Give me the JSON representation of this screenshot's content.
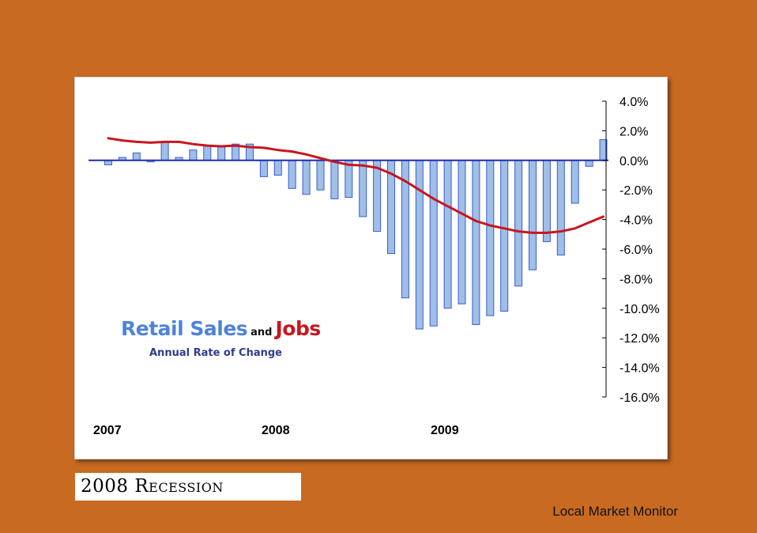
{
  "colors": {
    "background": "#c86a22",
    "bar_fill": "#9fbfe6",
    "bar_stroke": "#3b5bd6",
    "zero_line": "#1f2fb0",
    "jobs_line": "#c8161d",
    "retail_text": "#4f83d9",
    "jobs_text": "#c8161d",
    "sub_text": "#2f3d8c"
  },
  "chart_data": {
    "type": "bar",
    "title": "Retail Sales and Jobs",
    "subtitle": "Annual Rate of Change",
    "xlabel": "",
    "ylabel": "",
    "ylim": [
      -16,
      4
    ],
    "y_ticks": [
      "4.0%",
      "2.0%",
      "0.0%",
      "-2.0%",
      "-4.0%",
      "-6.0%",
      "-8.0%",
      "-10.0%",
      "-12.0%",
      "-14.0%",
      "-16.0%"
    ],
    "x_year_labels": [
      "2007",
      "2008",
      "2009"
    ],
    "series": [
      {
        "name": "Retail Sales",
        "kind": "bar",
        "values": [
          -0.3,
          0.2,
          0.5,
          -0.1,
          1.2,
          0.2,
          0.7,
          1.0,
          0.9,
          1.1,
          1.1,
          -1.1,
          -1.0,
          -1.9,
          -2.3,
          -2.0,
          -2.6,
          -2.5,
          -3.8,
          -4.8,
          -6.3,
          -9.3,
          -11.4,
          -11.2,
          -10.0,
          -9.7,
          -11.1,
          -10.5,
          -10.2,
          -8.5,
          -7.4,
          -5.5,
          -6.4,
          -2.9,
          -0.4,
          1.4
        ]
      },
      {
        "name": "Jobs",
        "kind": "line",
        "values": [
          1.5,
          1.35,
          1.25,
          1.2,
          1.25,
          1.25,
          1.1,
          1.0,
          0.95,
          1.0,
          0.9,
          0.85,
          0.7,
          0.6,
          0.4,
          0.15,
          -0.1,
          -0.3,
          -0.35,
          -0.5,
          -0.9,
          -1.4,
          -2.0,
          -2.6,
          -3.1,
          -3.6,
          -4.1,
          -4.4,
          -4.6,
          -4.8,
          -4.9,
          -4.9,
          -4.8,
          -4.6,
          -4.2,
          -3.8
        ]
      }
    ]
  },
  "legend": {
    "retail": "Retail Sales",
    "and": "and",
    "jobs": "Jobs",
    "subtitle": "Annual Rate of Change"
  },
  "years": {
    "y2007": "2007",
    "y2008": "2008",
    "y2009": "2009"
  },
  "caption": "2008 Recession",
  "footer": "Local Market Monitor"
}
